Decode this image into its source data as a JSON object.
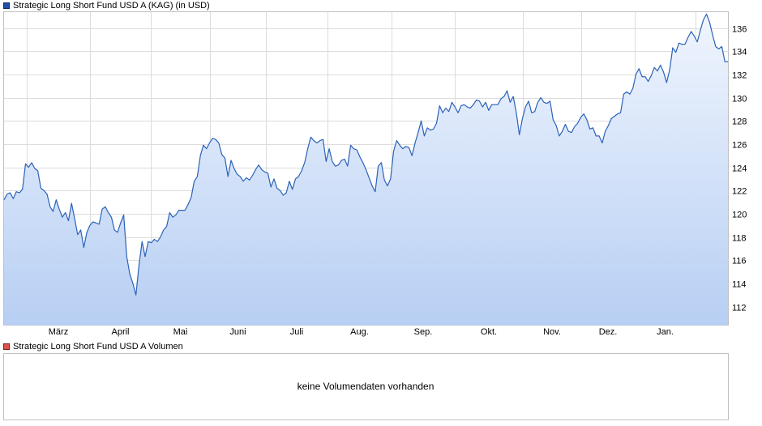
{
  "legend_price": {
    "label": "Strategic Long Short Fund USD A (KAG) (in USD)",
    "color": "#1f4fa8"
  },
  "legend_volume": {
    "label": "Strategic Long Short Fund USD A Volumen",
    "color": "#d9534f"
  },
  "volume_panel": {
    "message": "keine Volumendaten vorhanden"
  },
  "chart_data": {
    "type": "area",
    "title": "Strategic Long Short Fund USD A (KAG) (in USD)",
    "x_tick_labels": [
      "März",
      "April",
      "Mai",
      "Juni",
      "Juli",
      "Aug.",
      "Sep.",
      "Okt.",
      "Nov.",
      "Dez.",
      "Jan."
    ],
    "y_tick_labels": [
      "112",
      "114",
      "116",
      "118",
      "120",
      "122",
      "124",
      "126",
      "128",
      "130",
      "132",
      "134",
      "136"
    ],
    "ylim": [
      110.4,
      137.4
    ],
    "grid": true,
    "line_color": "#2b62b8",
    "fill_top_color": "#f0f5fe",
    "fill_bottom_color": "#b7cff3",
    "series": [
      {
        "values": [
          121.2,
          121.7,
          121.8,
          121.3,
          121.9,
          121.8,
          122.1,
          124.3,
          124,
          124.4,
          123.9,
          123.7,
          122.2,
          122,
          121.7,
          120.6,
          120.2,
          121.2,
          120.4,
          119.7,
          120.1,
          119.4,
          120.9,
          119.6,
          118.2,
          118.6,
          117.1,
          118.4,
          119,
          119.3,
          119.2,
          119.1,
          120.4,
          120.6,
          120.1,
          119.7,
          118.6,
          118.4,
          119.2,
          119.9,
          116.3,
          114.8,
          114,
          113,
          115.6,
          117.6,
          116.3,
          117.6,
          117.5,
          117.8,
          117.6,
          118,
          118.6,
          118.9,
          120.1,
          119.7,
          119.9,
          120.3,
          120.3,
          120.3,
          120.8,
          121.4,
          122.8,
          123.2,
          125,
          125.9,
          125.6,
          126.1,
          126.5,
          126.4,
          126.1,
          125.1,
          124.8,
          123.2,
          124.6,
          123.9,
          123.4,
          123.2,
          122.8,
          123.1,
          122.9,
          123.3,
          123.8,
          124.2,
          123.8,
          123.6,
          123.5,
          122.3,
          123,
          122.2,
          122,
          121.6,
          121.8,
          122.8,
          122.1,
          123,
          123.2,
          123.7,
          124.4,
          125.6,
          126.6,
          126.3,
          126.1,
          126.3,
          126.4,
          124.5,
          125.6,
          124.5,
          124.1,
          124.2,
          124.6,
          124.7,
          124.1,
          125.9,
          125.6,
          125.5,
          124.9,
          124.4,
          123.8,
          123.1,
          122.4,
          121.9,
          124.1,
          124.4,
          122.9,
          122.4,
          123,
          125.4,
          126.3,
          125.9,
          125.6,
          125.8,
          125.7,
          125,
          126.1,
          127,
          128,
          126.7,
          127.4,
          127.2,
          127.3,
          127.8,
          129.3,
          128.7,
          129.1,
          128.8,
          129.6,
          129.2,
          128.7,
          129.3,
          129.4,
          129.2,
          129.1,
          129.4,
          129.8,
          129.7,
          129.2,
          129.6,
          128.9,
          129.4,
          129.4,
          129.4,
          129.9,
          130.1,
          130.6,
          129.6,
          130.1,
          128.7,
          126.8,
          128.2,
          129.2,
          129.7,
          128.7,
          128.8,
          129.6,
          130,
          129.6,
          129.5,
          129.7,
          128.1,
          127.6,
          126.7,
          127.1,
          127.7,
          127.1,
          127,
          127.5,
          127.8,
          128.3,
          128.6,
          128.1,
          127.3,
          127.4,
          126.7,
          126.7,
          126.1,
          127.1,
          127.6,
          128.2,
          128.4,
          128.6,
          128.7,
          130.3,
          130.5,
          130.3,
          130.8,
          132,
          132.5,
          131.8,
          131.8,
          131.4,
          131.9,
          132.6,
          132.3,
          132.8,
          132.2,
          131.3,
          132.4,
          134.3,
          133.9,
          134.7,
          134.6,
          134.6,
          135.2,
          135.7,
          135.3,
          134.8,
          135.8,
          136.7,
          137.2,
          136.5,
          135.4,
          134.4,
          134.2,
          134.4,
          133.1,
          133.1
        ]
      }
    ]
  }
}
